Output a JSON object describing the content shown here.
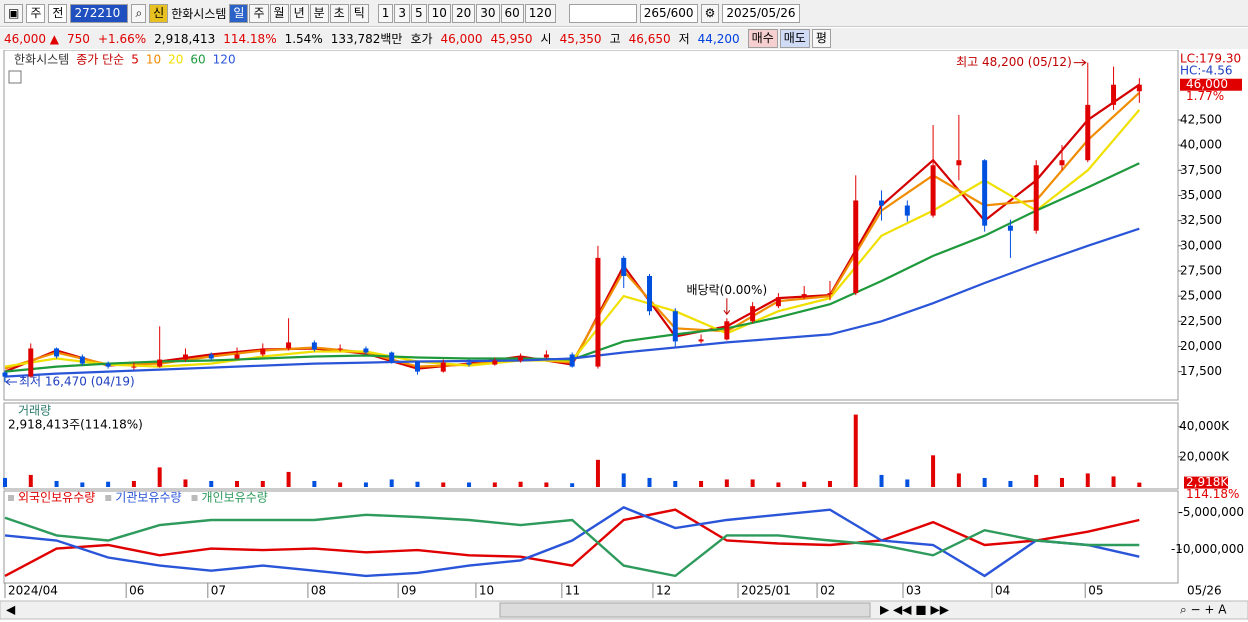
{
  "toolbar": {
    "period": "주",
    "prev": "전",
    "code": "272210",
    "badge": "신",
    "name": "한화시스템",
    "intervals": [
      "일",
      "주",
      "월",
      "년",
      "분",
      "초",
      "틱"
    ],
    "multipliers": [
      "1",
      "3",
      "5",
      "10",
      "20",
      "30",
      "60",
      "120"
    ],
    "count": "265",
    "max": "/600",
    "date": "2025/05/26"
  },
  "quote": {
    "price": "46,000 ▲",
    "change": "750",
    "change_pct": "+1.66%",
    "volume": "2,918,413",
    "volume_ratio": "114.18%",
    "turnover": "1.54%",
    "amount": "133,782백만",
    "bid_label": "호가",
    "ask": "46,000",
    "bid": "45,950",
    "open_label": "시",
    "open": "45,350",
    "high_label": "고",
    "high": "46,650",
    "low_label": "저",
    "low": "44,200",
    "buttons": [
      "매수",
      "매도",
      "평"
    ]
  },
  "chart_data": [
    {
      "type": "candlestick",
      "name": "한화시스템",
      "ma_label": "종가 단순",
      "up_color": "#e00000",
      "down_color": "#0050e0",
      "xlim": [
        0,
        273
      ],
      "x": [
        0,
        6,
        12,
        18,
        24,
        30,
        36,
        42,
        48,
        54,
        60,
        66,
        72,
        78,
        84,
        90,
        96,
        102,
        108,
        114,
        120,
        126,
        132,
        138,
        144,
        150,
        156,
        162,
        168,
        174,
        180,
        186,
        192,
        198,
        204,
        210,
        216,
        222,
        228,
        234,
        240,
        246,
        252,
        258,
        264
      ],
      "open": [
        17400,
        17000,
        19800,
        19000,
        18300,
        18000,
        18000,
        18700,
        19200,
        18800,
        19200,
        19800,
        20400,
        19700,
        19800,
        19400,
        18500,
        17500,
        18400,
        18200,
        18600,
        18900,
        19200,
        18000,
        28800,
        27000,
        23500,
        20500,
        20700,
        22500,
        24000,
        24900,
        25200,
        25300,
        34500,
        34000,
        33000,
        38000,
        38500,
        32000,
        31500,
        38000,
        38500,
        44000,
        45350
      ],
      "high": [
        17600,
        20300,
        19900,
        19200,
        18500,
        18400,
        22000,
        19800,
        19400,
        19900,
        20300,
        22800,
        20600,
        20200,
        20000,
        19500,
        18600,
        18700,
        18700,
        18900,
        19300,
        19600,
        19400,
        30000,
        29000,
        27200,
        23800,
        21200,
        22800,
        24400,
        25300,
        26000,
        26500,
        37000,
        35500,
        34500,
        42000,
        43000,
        38600,
        32600,
        38500,
        40000,
        48200,
        47800,
        46650
      ],
      "low": [
        16470,
        16900,
        18800,
        18100,
        17800,
        17700,
        17900,
        18500,
        18600,
        18700,
        19000,
        19600,
        19500,
        19500,
        19200,
        18300,
        17200,
        17400,
        18000,
        18100,
        18400,
        18800,
        17900,
        17800,
        25800,
        23100,
        20000,
        20300,
        20600,
        22300,
        23800,
        24700,
        24600,
        25100,
        32500,
        32400,
        32800,
        36500,
        31400,
        28800,
        31200,
        37500,
        38300,
        43500,
        44200
      ],
      "close": [
        17000,
        19800,
        19000,
        18300,
        18000,
        18000,
        18700,
        19200,
        18800,
        19200,
        19800,
        20400,
        19700,
        19800,
        19400,
        18500,
        17500,
        18400,
        18200,
        18600,
        18900,
        19200,
        18000,
        28800,
        27000,
        23500,
        20500,
        20700,
        22500,
        24000,
        24900,
        25200,
        25300,
        34500,
        34000,
        33000,
        38000,
        38500,
        32000,
        31500,
        38000,
        38500,
        44000,
        46000,
        46000
      ],
      "ma_x": [
        0,
        12,
        24,
        36,
        48,
        60,
        72,
        84,
        96,
        108,
        120,
        132,
        144,
        156,
        168,
        180,
        192,
        204,
        216,
        228,
        240,
        252,
        264
      ],
      "ma": [
        {
          "name": "5",
          "color": "#d40000",
          "values": [
            17500,
            19600,
            18100,
            18500,
            19200,
            19700,
            19800,
            19300,
            17800,
            18300,
            19000,
            18200,
            28000,
            21000,
            22000,
            24800,
            25100,
            34000,
            38500,
            32500,
            36500,
            42500,
            46000
          ]
        },
        {
          "name": "10",
          "color": "#f08c00",
          "values": [
            17800,
            19400,
            18200,
            18300,
            19000,
            19600,
            19900,
            19400,
            18000,
            18200,
            18800,
            18400,
            27500,
            21800,
            21500,
            24500,
            25000,
            33500,
            37000,
            34000,
            34500,
            40500,
            45200
          ]
        },
        {
          "name": "20",
          "color": "#f0e000",
          "values": [
            18000,
            18800,
            18200,
            18000,
            18300,
            19000,
            19500,
            19500,
            18500,
            18100,
            18600,
            18600,
            25000,
            23500,
            21300,
            23500,
            24800,
            31000,
            33500,
            36500,
            33500,
            37500,
            43500
          ]
        },
        {
          "name": "60",
          "color": "#1e9a3c",
          "values": [
            17500,
            18000,
            18300,
            18500,
            18600,
            18800,
            19000,
            19100,
            18900,
            18800,
            18800,
            18700,
            20500,
            21200,
            21800,
            22900,
            24200,
            26500,
            29000,
            31000,
            33500,
            35800,
            38200
          ]
        },
        {
          "name": "120",
          "color": "#2a55d8",
          "values": [
            17000,
            17300,
            17500,
            17700,
            17900,
            18100,
            18300,
            18400,
            18500,
            18550,
            18600,
            18800,
            19400,
            19900,
            20400,
            20800,
            21200,
            22500,
            24300,
            26300,
            28200,
            30000,
            31700
          ]
        }
      ],
      "ylim": [
        14680,
        49450
      ],
      "yticks": [
        {
          "value": 17500,
          "label": "17,500"
        },
        {
          "value": 20000,
          "label": "20,000"
        },
        {
          "value": 22500,
          "label": "22,500"
        },
        {
          "value": 25000,
          "label": "25,000"
        },
        {
          "value": 27500,
          "label": "27,500"
        },
        {
          "value": 30000,
          "label": "30,000"
        },
        {
          "value": 32500,
          "label": "32,500"
        },
        {
          "value": 35000,
          "label": "35,000"
        },
        {
          "value": 37500,
          "label": "37,500"
        },
        {
          "value": 40000,
          "label": "40,000"
        },
        {
          "value": 42500,
          "label": "42,500"
        }
      ],
      "high_note": {
        "text": "최고 48,200 (05/12)",
        "x": 252,
        "value": 48200
      },
      "low_note": {
        "text": "최저 16,470 (04/19)",
        "x": 0,
        "value": 16470
      },
      "dividend_note": {
        "text": "배당락(0.00%)",
        "x": 168
      },
      "lc": "LC:179.30",
      "hc": "HC:-4.56",
      "last": {
        "value": 46000,
        "label": "46,000"
      },
      "last_pct": "1.77%"
    },
    {
      "type": "bar",
      "title": "거래량",
      "subtitle": "2,918,413주(114.18%)",
      "xlim": [
        0,
        273
      ],
      "x": [
        0,
        6,
        12,
        18,
        24,
        30,
        36,
        42,
        48,
        54,
        60,
        66,
        72,
        78,
        84,
        90,
        96,
        102,
        108,
        114,
        120,
        126,
        132,
        138,
        144,
        150,
        156,
        162,
        168,
        174,
        180,
        186,
        192,
        198,
        204,
        210,
        216,
        222,
        228,
        234,
        240,
        246,
        252,
        258,
        264
      ],
      "values": [
        6000,
        8000,
        4000,
        3000,
        3500,
        4000,
        13000,
        5000,
        4000,
        4000,
        4000,
        10000,
        4000,
        3000,
        3000,
        5000,
        3500,
        3000,
        3000,
        3000,
        3500,
        3000,
        2500,
        18000,
        9000,
        6000,
        4000,
        4000,
        5000,
        5000,
        3000,
        3500,
        4000,
        48000,
        8000,
        5000,
        21000,
        9000,
        6000,
        4000,
        8000,
        6000,
        9000,
        7000,
        2918
      ],
      "ylim": [
        0,
        55000
      ],
      "yticks": [
        {
          "value": 20000,
          "label": "20,000K"
        },
        {
          "value": 40000,
          "label": "40,000K"
        }
      ],
      "last": {
        "value": 2918,
        "label": "2,918K"
      },
      "last_pct": "114.18%"
    },
    {
      "type": "line",
      "xlim": [
        0,
        273
      ],
      "x": [
        0,
        12,
        24,
        36,
        48,
        60,
        72,
        84,
        96,
        108,
        120,
        132,
        144,
        156,
        168,
        180,
        192,
        204,
        216,
        228,
        240,
        252,
        264
      ],
      "series": [
        {
          "name": "외국인보유수량",
          "color": "#e00000",
          "values": [
            -13600000,
            -9900000,
            -9400000,
            -10800000,
            -9900000,
            -10100000,
            -9900000,
            -10400000,
            -10100000,
            -10800000,
            -11000000,
            -12200000,
            -6000000,
            -4600000,
            -8800000,
            -9200000,
            -9400000,
            -8800000,
            -6300000,
            -9400000,
            -8800000,
            -7600000,
            -6000000
          ]
        },
        {
          "name": "기관보유수량",
          "color": "#2a55d8",
          "values": [
            -8100000,
            -8800000,
            -11100000,
            -12200000,
            -12900000,
            -12200000,
            -12900000,
            -13600000,
            -13200000,
            -12200000,
            -11500000,
            -8800000,
            -4300000,
            -7100000,
            -6000000,
            -5300000,
            -4600000,
            -8800000,
            -9400000,
            -13600000,
            -8800000,
            -9400000,
            -11000000
          ]
        },
        {
          "name": "개인보유수량",
          "color": "#2e9a5c",
          "values": [
            -5700000,
            -8100000,
            -8800000,
            -6700000,
            -6000000,
            -6000000,
            -6000000,
            -5300000,
            -5600000,
            -6000000,
            -6700000,
            -6000000,
            -12200000,
            -13600000,
            -8100000,
            -8100000,
            -8800000,
            -9400000,
            -10800000,
            -7400000,
            -8800000,
            -9400000,
            -9400000
          ]
        }
      ],
      "ylim": [
        -14300000,
        -2200000
      ],
      "yticks": [
        {
          "value": -5000000,
          "label": "-5,000,000"
        },
        {
          "value": -10000000,
          "label": "-10,000,000"
        }
      ],
      "xticks": [
        {
          "value": 0,
          "label": "2024/04"
        },
        {
          "value": 28.2,
          "label": "06"
        },
        {
          "value": 47.2,
          "label": "07"
        },
        {
          "value": 70.5,
          "label": "08"
        },
        {
          "value": 91.5,
          "label": "09"
        },
        {
          "value": 109.6,
          "label": "10"
        },
        {
          "value": 129.6,
          "label": "11"
        },
        {
          "value": 150.8,
          "label": "12"
        },
        {
          "value": 170.6,
          "label": "2025/01"
        },
        {
          "value": 189,
          "label": "02"
        },
        {
          "value": 209,
          "label": "03"
        },
        {
          "value": 229.7,
          "label": "04"
        },
        {
          "value": 251.4,
          "label": "05"
        }
      ],
      "current": "05/26"
    }
  ]
}
